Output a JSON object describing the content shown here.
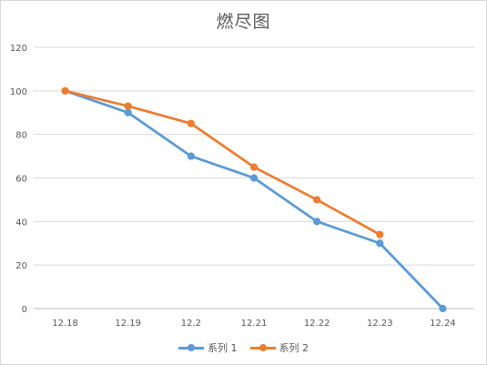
{
  "chart_data": {
    "type": "line",
    "title": "燃尽图",
    "xlabel": "",
    "ylabel": "",
    "categories": [
      "12.18",
      "12.19",
      "12.2",
      "12.21",
      "12.22",
      "12.23",
      "12.24"
    ],
    "yticks": [
      "0",
      "20",
      "40",
      "60",
      "80",
      "100",
      "120"
    ],
    "ylim": [
      0,
      120
    ],
    "grid": true,
    "legend_position": "bottom",
    "series": [
      {
        "name": "系列 1",
        "color": "#5b9bd5",
        "values": [
          100,
          90,
          70,
          60,
          40,
          30,
          0
        ]
      },
      {
        "name": "系列 2",
        "color": "#ed7d31",
        "values": [
          100,
          93,
          85,
          65,
          50,
          34,
          null
        ]
      }
    ]
  }
}
